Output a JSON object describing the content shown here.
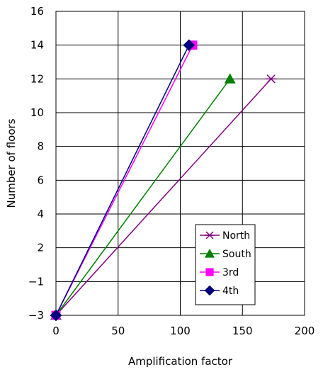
{
  "chart_data": {
    "type": "line",
    "xlabel": "Amplification factor",
    "ylabel": "Number of floors",
    "xlim": [
      0,
      200
    ],
    "x_ticks": [
      "0",
      "50",
      "100",
      "150",
      "200"
    ],
    "y_ticks": [
      {
        "value": -3,
        "label": "−3"
      },
      {
        "value": -1,
        "label": "−1"
      },
      {
        "value": 2,
        "label": "2"
      },
      {
        "value": 4,
        "label": "4"
      },
      {
        "value": 6,
        "label": "6"
      },
      {
        "value": 8,
        "label": "8"
      },
      {
        "value": 10,
        "label": "10"
      },
      {
        "value": 12,
        "label": "12"
      },
      {
        "value": 14,
        "label": "14"
      },
      {
        "value": 16,
        "label": "16"
      }
    ],
    "grid": true,
    "legend_position": "bottom-right",
    "series": [
      {
        "name": "North",
        "color": "#800080",
        "marker": "asterisk",
        "points": [
          {
            "x": 0,
            "y": -3
          },
          {
            "x": 173,
            "y": 12
          }
        ]
      },
      {
        "name": "South",
        "color": "#008000",
        "marker": "triangle",
        "points": [
          {
            "x": 0,
            "y": -3
          },
          {
            "x": 140,
            "y": 12
          }
        ]
      },
      {
        "name": "3rd",
        "color": "#ff00ff",
        "marker": "square",
        "points": [
          {
            "x": 0,
            "y": -3
          },
          {
            "x": 110,
            "y": 14
          }
        ]
      },
      {
        "name": "4th",
        "color": "#000080",
        "marker": "diamond",
        "points": [
          {
            "x": 0,
            "y": -3
          },
          {
            "x": 107,
            "y": 14
          }
        ]
      }
    ]
  }
}
